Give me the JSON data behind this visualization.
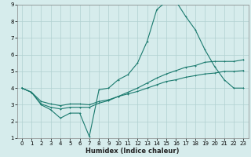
{
  "title": "",
  "xlabel": "Humidex (Indice chaleur)",
  "xlim": [
    -0.5,
    23.5
  ],
  "ylim": [
    1,
    9
  ],
  "xticks": [
    0,
    1,
    2,
    3,
    4,
    5,
    6,
    7,
    8,
    9,
    10,
    11,
    12,
    13,
    14,
    15,
    16,
    17,
    18,
    19,
    20,
    21,
    22,
    23
  ],
  "yticks": [
    1,
    2,
    3,
    4,
    5,
    6,
    7,
    8,
    9
  ],
  "bg_color": "#d6ecec",
  "grid_color": "#b0d0d0",
  "line_color": "#1a7a6e",
  "line1_x": [
    0,
    1,
    2,
    3,
    4,
    5,
    6,
    7,
    8,
    9,
    10,
    11,
    12,
    13,
    14,
    15,
    16,
    17,
    18,
    19,
    20,
    21,
    22,
    23
  ],
  "line1_y": [
    4.0,
    3.75,
    3.0,
    2.7,
    2.2,
    2.5,
    2.5,
    1.1,
    3.9,
    4.0,
    4.5,
    4.8,
    5.5,
    6.8,
    8.7,
    9.2,
    9.2,
    8.3,
    7.5,
    6.3,
    5.3,
    4.5,
    4.0,
    4.0
  ],
  "line2_x": [
    0,
    1,
    2,
    3,
    4,
    5,
    6,
    7,
    8,
    9,
    10,
    11,
    12,
    13,
    14,
    15,
    16,
    17,
    18,
    19,
    20,
    21,
    22,
    23
  ],
  "line2_y": [
    4.0,
    3.75,
    3.2,
    3.05,
    2.95,
    3.05,
    3.05,
    3.0,
    3.2,
    3.3,
    3.5,
    3.65,
    3.8,
    4.0,
    4.2,
    4.4,
    4.5,
    4.65,
    4.75,
    4.85,
    4.9,
    5.0,
    5.0,
    5.05
  ],
  "line3_x": [
    0,
    1,
    2,
    3,
    4,
    5,
    6,
    7,
    8,
    9,
    10,
    11,
    12,
    13,
    14,
    15,
    16,
    17,
    18,
    19,
    20,
    21,
    22,
    23
  ],
  "line3_y": [
    4.0,
    3.75,
    3.05,
    2.85,
    2.75,
    2.85,
    2.85,
    2.85,
    3.1,
    3.25,
    3.5,
    3.75,
    4.0,
    4.3,
    4.6,
    4.85,
    5.05,
    5.25,
    5.35,
    5.55,
    5.6,
    5.6,
    5.6,
    5.7
  ]
}
